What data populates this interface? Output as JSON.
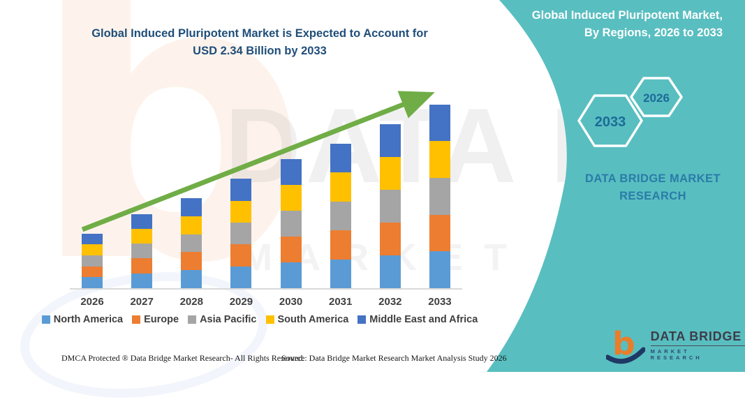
{
  "title": {
    "line1": "Global Induced Pluripotent Market is Expected to Account for",
    "line2": "USD 2.34 Billion by 2033"
  },
  "sidebar": {
    "title_line1": "Global Induced Pluripotent Market,",
    "title_line2": "By Regions, 2026 to 2033",
    "hexagons": [
      {
        "label": "2026"
      },
      {
        "label": "2033"
      }
    ],
    "brand_line1": "DATA BRIDGE MARKET",
    "brand_line2": "RESEARCH",
    "background_color": "#59BEC0"
  },
  "chart_data": {
    "type": "bar",
    "stacked": true,
    "title": "Global Induced Pluripotent Market is Expected to Account for USD 2.34 Billion by 2033",
    "unit": "USD Billion",
    "categories": [
      "2026",
      "2027",
      "2028",
      "2029",
      "2030",
      "2031",
      "2032",
      "2033"
    ],
    "series": [
      {
        "name": "North America",
        "color": "#5B9BD5",
        "values": [
          0.14,
          0.19,
          0.23,
          0.28,
          0.33,
          0.37,
          0.42,
          0.47
        ]
      },
      {
        "name": "Europe",
        "color": "#ED7D31",
        "values": [
          0.14,
          0.19,
          0.23,
          0.28,
          0.33,
          0.37,
          0.42,
          0.47
        ]
      },
      {
        "name": "Asia Pacific",
        "color": "#A5A5A5",
        "values": [
          0.14,
          0.19,
          0.23,
          0.28,
          0.33,
          0.37,
          0.42,
          0.47
        ]
      },
      {
        "name": "South America",
        "color": "#FFC000",
        "values": [
          0.14,
          0.19,
          0.23,
          0.28,
          0.33,
          0.37,
          0.42,
          0.47
        ]
      },
      {
        "name": "Middle East and Africa",
        "color": "#4472C4",
        "values": [
          0.14,
          0.19,
          0.23,
          0.28,
          0.33,
          0.37,
          0.42,
          0.47
        ]
      }
    ],
    "totals_estimated": [
      0.7,
      0.95,
      1.15,
      1.4,
      1.65,
      1.85,
      2.1,
      2.35
    ],
    "final_year_total": "USD 2.34 Billion",
    "trend_arrow": true,
    "trend_arrow_color": "#70AD47",
    "legend_position": "bottom",
    "gridlines": false,
    "y_axis_visible": false,
    "ylim": [
      0,
      2.6
    ]
  },
  "watermarks": {
    "ghost_letter": "b",
    "ghost_text_line1": "DATA BRIDGE",
    "ghost_text_line2": "MARKET RESEARCH"
  },
  "footer": {
    "dmca": "DMCA Protected ® Data Bridge Market Research-  All Rights Reserved.",
    "source": "Source: Data Bridge Market Research  Market Analysis Study 2026"
  },
  "logo": {
    "brand": "DATA BRIDGE",
    "tagline": "MARKET RESEARCH"
  }
}
